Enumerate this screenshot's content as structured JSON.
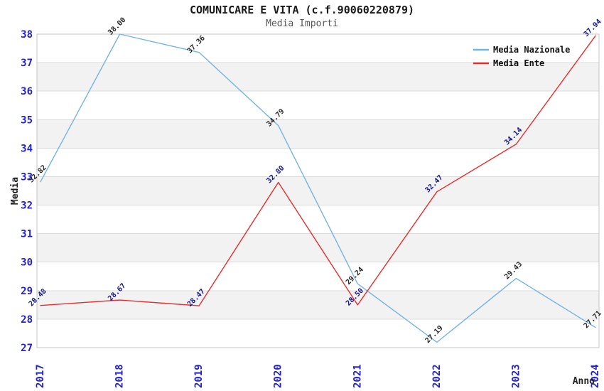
{
  "header": {
    "title": "COMUNICARE E VITA (c.f.90060220879)",
    "subtitle": "Media Importi"
  },
  "chart_data": {
    "type": "line",
    "title": "COMUNICARE E VITA (c.f.90060220879)",
    "subtitle": "Media Importi",
    "xlabel": "Anno",
    "ylabel": "Media",
    "x": [
      "2017",
      "2018",
      "2019",
      "2020",
      "2021",
      "2022",
      "2023",
      "2024"
    ],
    "series": [
      {
        "name": "Media Nazionale",
        "color": "#74b3e8",
        "label_color": "#262626",
        "values": [
          32.82,
          38.0,
          37.36,
          34.79,
          29.24,
          27.19,
          29.43,
          27.71
        ]
      },
      {
        "name": "Media Ente",
        "color": "#e62e2e",
        "label_color": "#14148c",
        "values": [
          28.48,
          28.67,
          28.47,
          32.8,
          28.5,
          32.47,
          34.14,
          37.94
        ]
      }
    ],
    "ylim": [
      27,
      38
    ],
    "yticks": [
      27,
      28,
      29,
      30,
      31,
      32,
      33,
      34,
      35,
      36,
      37,
      38
    ],
    "grid": true,
    "band_intervals": [
      [
        28,
        29
      ],
      [
        30,
        31
      ],
      [
        32,
        33
      ],
      [
        34,
        35
      ],
      [
        36,
        37
      ]
    ],
    "legend": {
      "position": "top-right",
      "entries": [
        "Media Nazionale",
        "Media Ente"
      ]
    },
    "colors": {
      "tick": "#2222cc",
      "grid": "#dcdcdc",
      "band": "#f2f2f2",
      "frame": "#c4c4c4",
      "legend_text": "#111111",
      "axis_title": "#222222"
    }
  }
}
